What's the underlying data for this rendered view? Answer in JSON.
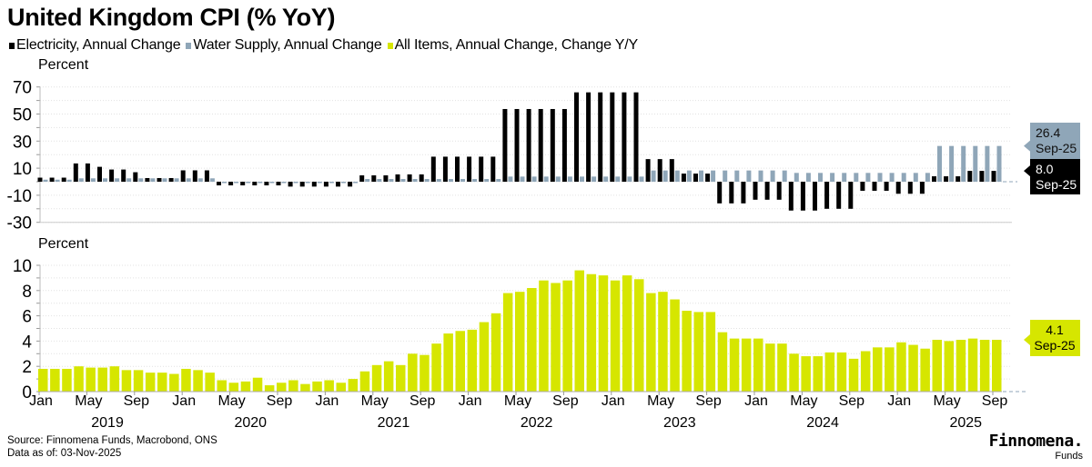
{
  "title": "United Kingdom CPI (% YoY)",
  "legend": [
    {
      "label": "Electricity, Annual Change",
      "color": "#000000"
    },
    {
      "label": "Water Supply, Annual Change",
      "color": "#8fa6b8"
    },
    {
      "label": "All Items, Annual Change, Change Y/Y",
      "color": "#d6e600"
    }
  ],
  "footer": {
    "source": "Source: Finnomena Funds, Macrobond, ONS",
    "data_as_of": "Data as of: 03-Nov-2025",
    "logo_name": "Finnomena.",
    "logo_sub": "Funds"
  },
  "chart_data": [
    {
      "type": "bar",
      "panel": "top",
      "ylabel": "Percent",
      "ylim": [
        -30,
        70
      ],
      "yticks": [
        70,
        50,
        30,
        10,
        -10,
        -30
      ],
      "grid": true,
      "x_start": "Jan 2019",
      "x_end": "Sep 2025",
      "frequency": "monthly",
      "series": [
        {
          "name": "Electricity, Annual Change",
          "color": "#000000",
          "values": [
            3,
            3,
            3,
            13.5,
            13.5,
            11,
            9,
            9,
            7,
            2.7,
            2.7,
            2.7,
            8.4,
            8.4,
            8.4,
            -2.7,
            -2.7,
            -2.7,
            -2.7,
            -2.7,
            -2.7,
            -3.6,
            -3.6,
            -3.6,
            -3.6,
            -3.6,
            -3.6,
            4.7,
            4.7,
            4.7,
            5.4,
            5.4,
            5.4,
            18.5,
            18.5,
            18.5,
            18.5,
            18.5,
            18.5,
            53.7,
            53.7,
            53.7,
            53.7,
            53.7,
            53.7,
            66,
            66,
            66,
            66,
            66,
            66,
            16.7,
            16.7,
            16.7,
            6,
            6,
            6,
            -16,
            -16,
            -16,
            -13.3,
            -13.3,
            -13.3,
            -21.3,
            -21.3,
            -21.3,
            -20,
            -20,
            -20,
            -6.7,
            -6.7,
            -6.7,
            -8.9,
            -8.9,
            -8.9,
            4,
            4,
            4,
            8.0,
            8.0,
            8.0
          ],
          "last": {
            "value": "8.0",
            "date": "Sep-25"
          }
        },
        {
          "name": "Water Supply, Annual Change",
          "color": "#8fa6b8",
          "values": [
            1.5,
            1.5,
            1.5,
            2.5,
            2.5,
            2.5,
            2.5,
            2.5,
            2.5,
            2.5,
            2.5,
            2.5,
            2.5,
            2.5,
            2.5,
            -0.5,
            -0.5,
            -0.5,
            -0.5,
            -0.5,
            -0.5,
            -0.5,
            -0.5,
            -0.5,
            -0.5,
            -0.5,
            -0.5,
            2,
            2,
            2,
            2,
            2,
            2,
            2,
            2,
            2,
            2,
            2,
            2,
            3.8,
            3.8,
            3.8,
            3.8,
            3.8,
            3.8,
            3.8,
            3.8,
            3.8,
            3.8,
            3.8,
            3.8,
            8.3,
            8.3,
            8.3,
            8.3,
            8.3,
            8.3,
            8.3,
            8.3,
            8.3,
            8.3,
            8.3,
            8.3,
            6.5,
            6.5,
            6.5,
            6.5,
            6.5,
            6.5,
            6.5,
            6.5,
            6.5,
            6.5,
            6.5,
            6.5,
            26.4,
            26.4,
            26.4,
            26.4,
            26.4,
            26.4
          ],
          "last": {
            "value": "26.4",
            "date": "Sep-25"
          }
        }
      ]
    },
    {
      "type": "bar",
      "panel": "bottom",
      "ylabel": "Percent",
      "ylim": [
        0,
        10
      ],
      "yticks": [
        10,
        8,
        6,
        4,
        2,
        0
      ],
      "grid": true,
      "x_tick_labels": [
        "Jan",
        "May",
        "Sep",
        "Jan",
        "May",
        "Sep",
        "Jan",
        "May",
        "Sep",
        "Jan",
        "May",
        "Sep",
        "Jan",
        "May",
        "Sep",
        "Jan",
        "May",
        "Sep",
        "Jan",
        "May",
        "Sep"
      ],
      "x_year_labels": [
        "2019",
        "2020",
        "2021",
        "2022",
        "2023",
        "2024",
        "2025"
      ],
      "series": [
        {
          "name": "All Items, Annual Change, Change Y/Y",
          "color": "#d6e600",
          "values": [
            1.8,
            1.8,
            1.8,
            2.0,
            1.9,
            1.9,
            2.0,
            1.7,
            1.7,
            1.5,
            1.5,
            1.4,
            1.8,
            1.7,
            1.5,
            0.9,
            0.7,
            0.8,
            1.1,
            0.5,
            0.7,
            0.9,
            0.6,
            0.8,
            0.9,
            0.7,
            1.0,
            1.6,
            2.1,
            2.4,
            2.1,
            3.0,
            2.9,
            3.8,
            4.6,
            4.8,
            4.9,
            5.5,
            6.2,
            7.8,
            7.9,
            8.2,
            8.8,
            8.6,
            8.8,
            9.6,
            9.3,
            9.2,
            8.8,
            9.2,
            8.9,
            7.8,
            7.9,
            7.3,
            6.4,
            6.3,
            6.3,
            4.7,
            4.2,
            4.2,
            4.2,
            3.8,
            3.8,
            3.0,
            2.8,
            2.8,
            3.1,
            3.1,
            2.6,
            3.2,
            3.5,
            3.5,
            3.9,
            3.7,
            3.4,
            4.1,
            4.0,
            4.1,
            4.2,
            4.1,
            4.1
          ],
          "last": {
            "value": "4.1",
            "date": "Sep-25"
          }
        }
      ]
    }
  ]
}
